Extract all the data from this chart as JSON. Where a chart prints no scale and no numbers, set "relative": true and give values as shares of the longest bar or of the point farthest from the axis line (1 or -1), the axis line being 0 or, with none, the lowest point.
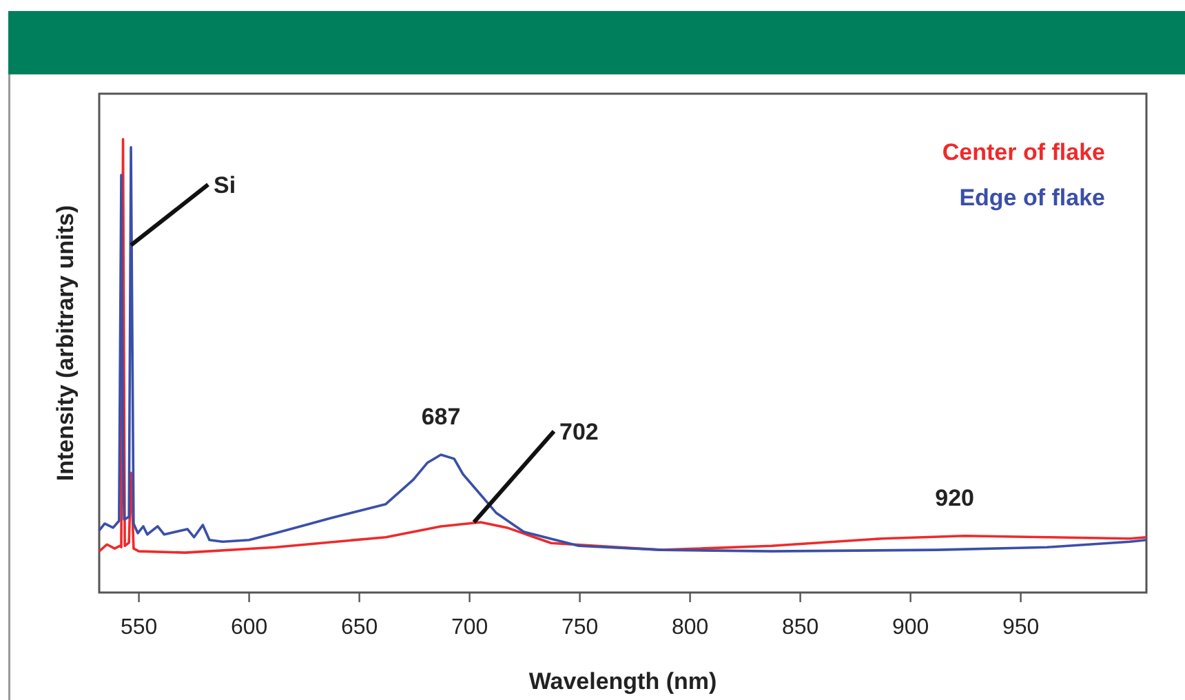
{
  "chart_data": {
    "type": "line",
    "relative": true,
    "xlabel": "Wavelength (nm)",
    "ylabel": "Intensity (arbitrary units)",
    "xlim": [
      532,
      1007
    ],
    "xticks": [
      550,
      600,
      650,
      700,
      750,
      800,
      850,
      900,
      950
    ],
    "grid": false,
    "legend": "top right",
    "marker": "none",
    "line_style": "solid",
    "annotations": [
      {
        "text": "Si",
        "x": 546.4,
        "y": 0.766
      },
      {
        "text": "687",
        "x": 687,
        "y": 0.304
      },
      {
        "text": "702",
        "x": 702,
        "y": 0.155
      },
      {
        "text": "920",
        "x": 920,
        "y": 0.125
      }
    ],
    "series": [
      {
        "name": "Center of flake",
        "color": "#ee2a2a",
        "x": [
          532,
          535.5,
          539,
          541.5,
          542,
          542.8,
          543.6,
          545.5,
          546.4,
          547.6,
          550,
          571,
          612,
          662,
          687,
          705,
          717,
          737,
          787,
          837,
          887,
          924.5,
          962,
          999.5,
          1007
        ],
        "values": [
          0.091,
          0.106,
          0.097,
          0.103,
          0.1,
          1,
          0.103,
          0.11,
          0.264,
          0.097,
          0.091,
          0.088,
          0.1,
          0.122,
          0.146,
          0.155,
          0.143,
          0.109,
          0.094,
          0.103,
          0.119,
          0.125,
          0.122,
          0.119,
          0.122
        ]
      },
      {
        "name": "Edge of flake",
        "color": "#3a4fa8",
        "x": [
          532,
          534.5,
          538.3,
          541,
          542,
          542.6,
          543.3,
          545.5,
          546.4,
          547.6,
          549.5,
          552,
          553.8,
          558.5,
          561.5,
          572,
          575,
          579,
          582,
          588,
          600,
          612,
          637,
          662,
          674.5,
          680.8,
          687,
          693,
          697,
          712,
          724.5,
          749.5,
          787,
          837,
          912,
          962,
          999.5,
          1007
        ],
        "values": [
          0.137,
          0.152,
          0.143,
          0.158,
          0.921,
          0.395,
          0.161,
          0.167,
          0.982,
          0.152,
          0.131,
          0.146,
          0.128,
          0.146,
          0.128,
          0.14,
          0.122,
          0.149,
          0.116,
          0.112,
          0.116,
          0.131,
          0.164,
          0.195,
          0.249,
          0.286,
          0.304,
          0.295,
          0.261,
          0.176,
          0.134,
          0.103,
          0.094,
          0.091,
          0.094,
          0.1,
          0.112,
          0.116
        ]
      }
    ]
  }
}
